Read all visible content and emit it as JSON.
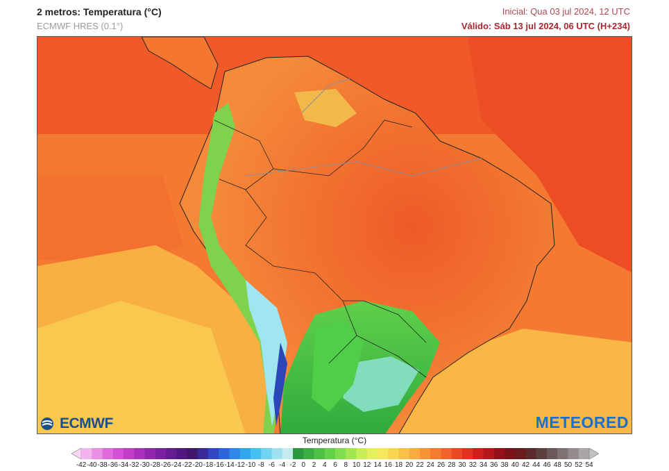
{
  "header": {
    "title": "2 metros: Temperatura (°C)",
    "model": "ECMWF HRES (0.1°)",
    "initial": "Inicial: Qua 03 jul 2024, 12 UTC",
    "valid": "Válido: Sáb 13 jul 2024, 06 UTC (H+234)"
  },
  "logos": {
    "left": "ECMWF",
    "right": "METEORED"
  },
  "legend": {
    "title": "Temperatura (°C)",
    "ticks": [
      "-42",
      "-40",
      "-38",
      "-36",
      "-34",
      "-32",
      "-30",
      "-28",
      "-26",
      "-24",
      "-22",
      "-20",
      "-18",
      "-16",
      "-14",
      "-12",
      "-10",
      "-8",
      "-6",
      "-4",
      "-2",
      "0",
      "2",
      "4",
      "6",
      "8",
      "10",
      "12",
      "14",
      "16",
      "18",
      "20",
      "22",
      "24",
      "26",
      "28",
      "30",
      "32",
      "34",
      "36",
      "38",
      "40",
      "42",
      "44",
      "46",
      "48",
      "50",
      "52",
      "54"
    ],
    "colors": [
      "#f9d6f5",
      "#f2b3ee",
      "#ea8fe6",
      "#e06bdd",
      "#d44fd3",
      "#c23ec8",
      "#a930bb",
      "#9126ad",
      "#7a20a0",
      "#651b92",
      "#521780",
      "#42186f",
      "#3b2a9a",
      "#3146c0",
      "#2d66d8",
      "#2f88e6",
      "#35a6ee",
      "#47c0f2",
      "#6fd4f1",
      "#9ce2ef",
      "#c3ecef",
      "#2b9a3e",
      "#3aae40",
      "#4cc143",
      "#63d248",
      "#80de4e",
      "#a3e653",
      "#c7ed5a",
      "#e3f060",
      "#f3e85e",
      "#f8d654",
      "#f9c14a",
      "#f9ab41",
      "#f79439",
      "#f47c31",
      "#f0642a",
      "#e94a24",
      "#df321f",
      "#cd1f1c",
      "#b3161b",
      "#95111a",
      "#7b1217",
      "#6a1c1c",
      "#5c2a2a",
      "#5d3f3f",
      "#6b5858",
      "#7e7272",
      "#948c8c",
      "#aaa6a6",
      "#c2c0c0"
    ]
  }
}
